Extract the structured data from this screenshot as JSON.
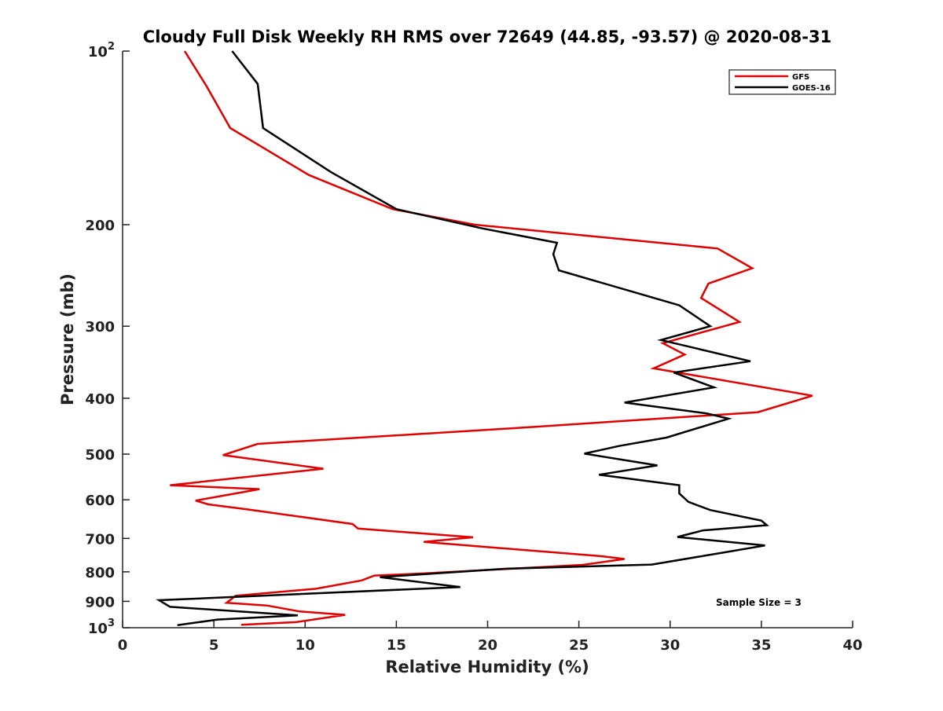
{
  "chart_data": {
    "type": "line",
    "title": "Cloudy Full Disk Weekly RH RMS over 72649 (44.85, -93.57) @ 2020-08-31",
    "xlabel": "Relative Humidity (%)",
    "ylabel": "Pressure (mb)",
    "xlim": [
      0,
      40
    ],
    "ylim": [
      100,
      1000
    ],
    "yscale": "log",
    "y_reversed": true,
    "x_ticks": [
      "0",
      "5",
      "10",
      "15",
      "20",
      "25",
      "30",
      "35",
      "40"
    ],
    "y_ticks": [
      {
        "value": 100,
        "base": "10",
        "exp": "2"
      },
      {
        "value": 200,
        "label": "200"
      },
      {
        "value": 300,
        "label": "300"
      },
      {
        "value": 400,
        "label": "400"
      },
      {
        "value": 500,
        "label": "500"
      },
      {
        "value": 600,
        "label": "600"
      },
      {
        "value": 700,
        "label": "700"
      },
      {
        "value": 800,
        "label": "800"
      },
      {
        "value": 900,
        "label": "900"
      },
      {
        "value": 1000,
        "base": "10",
        "exp": "3"
      }
    ],
    "grid": false,
    "legend_position": "top-right",
    "annotation": "Sample Size = 3",
    "series": [
      {
        "name": "GFS",
        "color": "#e00000",
        "points": [
          [
            3.4,
            100
          ],
          [
            4.6,
            115
          ],
          [
            5.9,
            136
          ],
          [
            10.2,
            164
          ],
          [
            14.8,
            188
          ],
          [
            19.3,
            200
          ],
          [
            32.6,
            220
          ],
          [
            34.5,
            238
          ],
          [
            32.1,
            253
          ],
          [
            31.7,
            268
          ],
          [
            33.8,
            295
          ],
          [
            29.6,
            321
          ],
          [
            30.8,
            336
          ],
          [
            29.1,
            355
          ],
          [
            37.8,
            396
          ],
          [
            34.8,
            423
          ],
          [
            21.3,
            451
          ],
          [
            7.4,
            480
          ],
          [
            5.5,
            502
          ],
          [
            11.0,
            530
          ],
          [
            2.6,
            566
          ],
          [
            7.5,
            575
          ],
          [
            4.0,
            602
          ],
          [
            4.7,
            611
          ],
          [
            6.8,
            623
          ],
          [
            12.6,
            661
          ],
          [
            12.9,
            673
          ],
          [
            19.2,
            697
          ],
          [
            16.5,
            710
          ],
          [
            26.3,
            752
          ],
          [
            27.5,
            760
          ],
          [
            25.2,
            778
          ],
          [
            16.5,
            805
          ],
          [
            13.8,
            812
          ],
          [
            13.1,
            828
          ],
          [
            10.6,
            856
          ],
          [
            6.2,
            880
          ],
          [
            5.7,
            905
          ],
          [
            7.9,
            915
          ],
          [
            9.7,
            937
          ],
          [
            12.2,
            950
          ],
          [
            9.5,
            978
          ],
          [
            6.5,
            988
          ]
        ]
      },
      {
        "name": "GOES-16",
        "color": "#000000",
        "points": [
          [
            6.0,
            100
          ],
          [
            7.4,
            114
          ],
          [
            7.7,
            136
          ],
          [
            11.4,
            162
          ],
          [
            15.0,
            188
          ],
          [
            19.7,
            203
          ],
          [
            23.8,
            215
          ],
          [
            23.6,
            225
          ],
          [
            23.9,
            240
          ],
          [
            30.5,
            276
          ],
          [
            32.2,
            300
          ],
          [
            29.5,
            317
          ],
          [
            34.4,
            345
          ],
          [
            30.2,
            361
          ],
          [
            32.4,
            383
          ],
          [
            27.5,
            407
          ],
          [
            32.0,
            425
          ],
          [
            33.2,
            434
          ],
          [
            29.8,
            468
          ],
          [
            27.2,
            484
          ],
          [
            25.3,
            499
          ],
          [
            29.3,
            523
          ],
          [
            26.1,
            543
          ],
          [
            30.5,
            566
          ],
          [
            30.5,
            585
          ],
          [
            31.0,
            605
          ],
          [
            32.2,
            625
          ],
          [
            35.0,
            652
          ],
          [
            35.3,
            664
          ],
          [
            31.8,
            678
          ],
          [
            30.4,
            696
          ],
          [
            35.2,
            720
          ],
          [
            33.0,
            740
          ],
          [
            29.0,
            777
          ],
          [
            21.0,
            790
          ],
          [
            14.1,
            817
          ],
          [
            18.5,
            850
          ],
          [
            2.0,
            896
          ],
          [
            2.6,
            920
          ],
          [
            9.6,
            952
          ],
          [
            5.2,
            968
          ],
          [
            3.0,
            990
          ]
        ]
      }
    ]
  }
}
